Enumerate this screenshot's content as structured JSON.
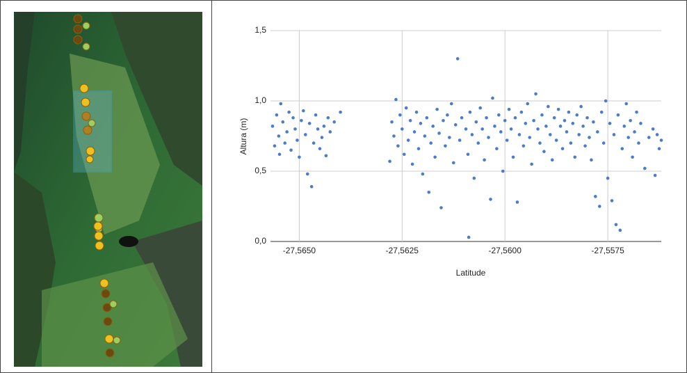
{
  "chart_data": {
    "type": "scatter",
    "x_label": "Latitude",
    "y_label": "Altura (m)",
    "color": "#4a7ccc",
    "grid": true,
    "xlim": [
      -27.5657,
      -27.5562
    ],
    "ylim": [
      0,
      1.5
    ],
    "xticks": [
      {
        "value": -27.565,
        "label": "-27,5650"
      },
      {
        "value": -27.5625,
        "label": "-27,5625"
      },
      {
        "value": -27.56,
        "label": "-27,5600"
      },
      {
        "value": -27.5575,
        "label": "-27,5575"
      }
    ],
    "yticks": [
      {
        "value": 0,
        "label": "0,0"
      },
      {
        "value": 0.5,
        "label": "0,5"
      },
      {
        "value": 1,
        "label": "1,0"
      },
      {
        "value": 1.5,
        "label": "1,5"
      }
    ],
    "x": [
      -27.56565,
      -27.5656,
      -27.56555,
      -27.5655,
      -27.56548,
      -27.56545,
      -27.5654,
      -27.56535,
      -27.5653,
      -27.56525,
      -27.5652,
      -27.56515,
      -27.5651,
      -27.56505,
      -27.565,
      -27.56495,
      -27.5649,
      -27.56485,
      -27.5648,
      -27.56475,
      -27.5647,
      -27.56465,
      -27.5646,
      -27.56455,
      -27.5645,
      -27.56445,
      -27.5644,
      -27.56435,
      -27.5643,
      -27.56425,
      -27.56415,
      -27.564,
      -27.5628,
      -27.56275,
      -27.5627,
      -27.56265,
      -27.5626,
      -27.56255,
      -27.5625,
      -27.56245,
      -27.5624,
      -27.56235,
      -27.5623,
      -27.56225,
      -27.5622,
      -27.56215,
      -27.5621,
      -27.56205,
      -27.562,
      -27.56195,
      -27.5619,
      -27.56185,
      -27.5618,
      -27.56175,
      -27.5617,
      -27.56165,
      -27.5616,
      -27.56155,
      -27.5615,
      -27.56145,
      -27.5614,
      -27.56135,
      -27.5613,
      -27.56125,
      -27.5612,
      -27.56115,
      -27.5611,
      -27.56105,
      -27.56088,
      -27.56095,
      -27.5609,
      -27.56085,
      -27.5608,
      -27.56075,
      -27.5607,
      -27.56065,
      -27.5606,
      -27.56055,
      -27.5605,
      -27.56045,
      -27.5604,
      -27.56035,
      -27.5603,
      -27.56025,
      -27.5602,
      -27.56015,
      -27.5601,
      -27.56005,
      -27.56,
      -27.55995,
      -27.5599,
      -27.55985,
      -27.5598,
      -27.55975,
      -27.5597,
      -27.55965,
      -27.5596,
      -27.55955,
      -27.5595,
      -27.55945,
      -27.5594,
      -27.55935,
      -27.5593,
      -27.55925,
      -27.5592,
      -27.55915,
      -27.5591,
      -27.55905,
      -27.559,
      -27.55895,
      -27.5589,
      -27.55885,
      -27.5588,
      -27.55875,
      -27.5587,
      -27.55865,
      -27.5586,
      -27.55855,
      -27.5585,
      -27.55845,
      -27.5584,
      -27.55835,
      -27.5583,
      -27.55825,
      -27.5582,
      -27.55815,
      -27.5581,
      -27.55805,
      -27.558,
      -27.55795,
      -27.5579,
      -27.55785,
      -27.5578,
      -27.55775,
      -27.5577,
      -27.55765,
      -27.5576,
      -27.55755,
      -27.5575,
      -27.55745,
      -27.5574,
      -27.55735,
      -27.5573,
      -27.55725,
      -27.5572,
      -27.55715,
      -27.5571,
      -27.55705,
      -27.557,
      -27.55695,
      -27.5569,
      -27.55685,
      -27.5568,
      -27.55675,
      -27.5567,
      -27.5566,
      -27.5565,
      -27.5564,
      -27.55635,
      -27.5563,
      -27.55625,
      -27.5562
    ],
    "values": [
      0.82,
      0.68,
      0.9,
      0.75,
      0.62,
      0.98,
      0.85,
      0.7,
      0.78,
      0.92,
      0.65,
      0.88,
      0.8,
      0.72,
      0.6,
      0.86,
      0.93,
      0.76,
      0.48,
      0.84,
      0.39,
      0.7,
      0.9,
      0.8,
      0.66,
      0.74,
      0.82,
      0.61,
      0.88,
      0.78,
      0.85,
      0.92,
      0.57,
      0.85,
      0.75,
      1.01,
      0.68,
      0.9,
      0.8,
      0.62,
      0.95,
      0.72,
      0.86,
      0.55,
      0.78,
      0.92,
      0.66,
      0.84,
      0.48,
      0.75,
      0.88,
      0.35,
      0.7,
      0.82,
      0.6,
      0.94,
      0.77,
      0.24,
      0.86,
      0.68,
      0.9,
      0.74,
      0.98,
      0.56,
      0.83,
      1.3,
      0.72,
      0.88,
      0.03,
      0.8,
      0.62,
      0.92,
      0.76,
      0.45,
      0.85,
      0.7,
      0.95,
      0.8,
      0.58,
      0.88,
      0.74,
      0.3,
      1.02,
      0.82,
      0.66,
      0.9,
      0.78,
      0.5,
      0.86,
      0.72,
      0.94,
      0.8,
      0.6,
      0.88,
      0.28,
      0.76,
      0.92,
      0.68,
      0.84,
      0.98,
      0.74,
      0.55,
      0.86,
      1.05,
      0.8,
      0.7,
      0.9,
      0.64,
      0.82,
      0.96,
      0.76,
      0.58,
      0.88,
      0.72,
      0.94,
      0.82,
      0.66,
      0.86,
      0.78,
      0.92,
      0.7,
      0.84,
      0.6,
      0.9,
      0.76,
      0.96,
      0.82,
      0.68,
      0.88,
      0.74,
      0.58,
      0.85,
      0.32,
      0.78,
      0.25,
      0.92,
      0.7,
      1.0,
      0.45,
      0.84,
      0.29,
      0.76,
      0.12,
      0.9,
      0.08,
      0.66,
      0.82,
      0.98,
      0.74,
      0.86,
      0.6,
      0.78,
      0.92,
      0.7,
      0.84,
      0.52,
      0.74,
      0.8,
      0.47,
      0.76,
      0.66,
      0.72
    ]
  }
}
